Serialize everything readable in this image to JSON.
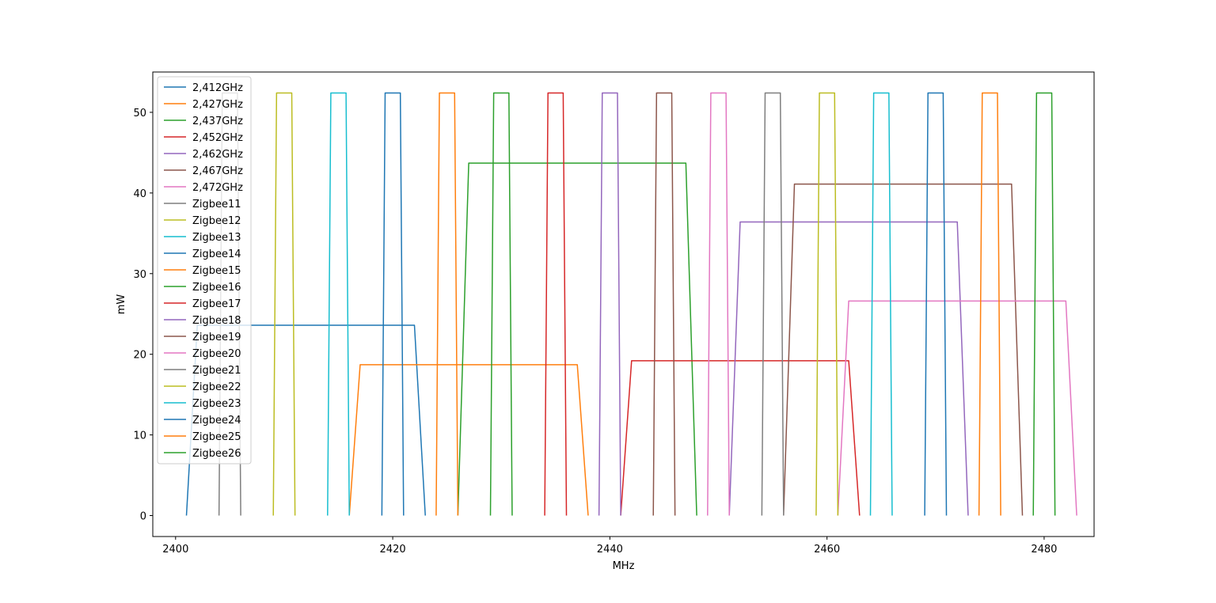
{
  "chart_data": {
    "type": "line",
    "title": "",
    "xlabel": "MHz",
    "ylabel": "mW",
    "xlim": [
      2397.9,
      2484.6
    ],
    "ylim": [
      -2.6,
      55.0
    ],
    "xticks": [
      2400,
      2420,
      2440,
      2460,
      2480
    ],
    "yticks": [
      0,
      10,
      20,
      30,
      40,
      50
    ],
    "grid": false,
    "legend_position": "top-left",
    "series": [
      {
        "name": "2,412GHz",
        "color": "#1f77b4",
        "x": [
          2401,
          2402,
          2422,
          2423
        ],
        "y": [
          0,
          23.6,
          23.6,
          0
        ]
      },
      {
        "name": "2,427GHz",
        "color": "#ff7f0e",
        "x": [
          2416,
          2417,
          2437,
          2438
        ],
        "y": [
          0,
          18.7,
          18.7,
          0
        ]
      },
      {
        "name": "2,437GHz",
        "color": "#2ca02c",
        "x": [
          2426,
          2427,
          2447,
          2448
        ],
        "y": [
          0,
          43.7,
          43.7,
          0
        ]
      },
      {
        "name": "2,452GHz",
        "color": "#d62728",
        "x": [
          2441,
          2442,
          2462,
          2463
        ],
        "y": [
          0,
          19.2,
          19.2,
          0
        ]
      },
      {
        "name": "2,462GHz",
        "color": "#9467bd",
        "x": [
          2451,
          2452,
          2472,
          2473
        ],
        "y": [
          0,
          36.4,
          36.4,
          0
        ]
      },
      {
        "name": "2,467GHz",
        "color": "#8c564b",
        "x": [
          2456,
          2457,
          2477,
          2478
        ],
        "y": [
          0,
          41.1,
          41.1,
          0
        ]
      },
      {
        "name": "2,472GHz",
        "color": "#e377c2",
        "x": [
          2461,
          2462,
          2482,
          2483
        ],
        "y": [
          0,
          26.6,
          26.6,
          0
        ]
      },
      {
        "name": "Zigbee11",
        "color": "#7f7f7f",
        "x": [
          2404,
          2404.3,
          2405.7,
          2406
        ],
        "y": [
          0,
          52.4,
          52.4,
          0
        ]
      },
      {
        "name": "Zigbee12",
        "color": "#bcbd22",
        "x": [
          2409,
          2409.3,
          2410.7,
          2411
        ],
        "y": [
          0,
          52.4,
          52.4,
          0
        ]
      },
      {
        "name": "Zigbee13",
        "color": "#17becf",
        "x": [
          2414,
          2414.3,
          2415.7,
          2416
        ],
        "y": [
          0,
          52.4,
          52.4,
          0
        ]
      },
      {
        "name": "Zigbee14",
        "color": "#1f77b4",
        "x": [
          2419,
          2419.3,
          2420.7,
          2421
        ],
        "y": [
          0,
          52.4,
          52.4,
          0
        ]
      },
      {
        "name": "Zigbee15",
        "color": "#ff7f0e",
        "x": [
          2424,
          2424.3,
          2425.7,
          2426
        ],
        "y": [
          0,
          52.4,
          52.4,
          0
        ]
      },
      {
        "name": "Zigbee16",
        "color": "#2ca02c",
        "x": [
          2429,
          2429.3,
          2430.7,
          2431
        ],
        "y": [
          0,
          52.4,
          52.4,
          0
        ]
      },
      {
        "name": "Zigbee17",
        "color": "#d62728",
        "x": [
          2434,
          2434.3,
          2435.7,
          2436
        ],
        "y": [
          0,
          52.4,
          52.4,
          0
        ]
      },
      {
        "name": "Zigbee18",
        "color": "#9467bd",
        "x": [
          2439,
          2439.3,
          2440.7,
          2441
        ],
        "y": [
          0,
          52.4,
          52.4,
          0
        ]
      },
      {
        "name": "Zigbee19",
        "color": "#8c564b",
        "x": [
          2444,
          2444.3,
          2445.7,
          2446
        ],
        "y": [
          0,
          52.4,
          52.4,
          0
        ]
      },
      {
        "name": "Zigbee20",
        "color": "#e377c2",
        "x": [
          2449,
          2449.3,
          2450.7,
          2451
        ],
        "y": [
          0,
          52.4,
          52.4,
          0
        ]
      },
      {
        "name": "Zigbee21",
        "color": "#7f7f7f",
        "x": [
          2454,
          2454.3,
          2455.7,
          2456
        ],
        "y": [
          0,
          52.4,
          52.4,
          0
        ]
      },
      {
        "name": "Zigbee22",
        "color": "#bcbd22",
        "x": [
          2459,
          2459.3,
          2460.7,
          2461
        ],
        "y": [
          0,
          52.4,
          52.4,
          0
        ]
      },
      {
        "name": "Zigbee23",
        "color": "#17becf",
        "x": [
          2464,
          2464.3,
          2465.7,
          2466
        ],
        "y": [
          0,
          52.4,
          52.4,
          0
        ]
      },
      {
        "name": "Zigbee24",
        "color": "#1f77b4",
        "x": [
          2469,
          2469.3,
          2470.7,
          2471
        ],
        "y": [
          0,
          52.4,
          52.4,
          0
        ]
      },
      {
        "name": "Zigbee25",
        "color": "#ff7f0e",
        "x": [
          2474,
          2474.3,
          2475.7,
          2476
        ],
        "y": [
          0,
          52.4,
          52.4,
          0
        ]
      },
      {
        "name": "Zigbee26",
        "color": "#2ca02c",
        "x": [
          2479,
          2479.3,
          2480.7,
          2481
        ],
        "y": [
          0,
          52.4,
          52.4,
          0
        ]
      }
    ]
  }
}
